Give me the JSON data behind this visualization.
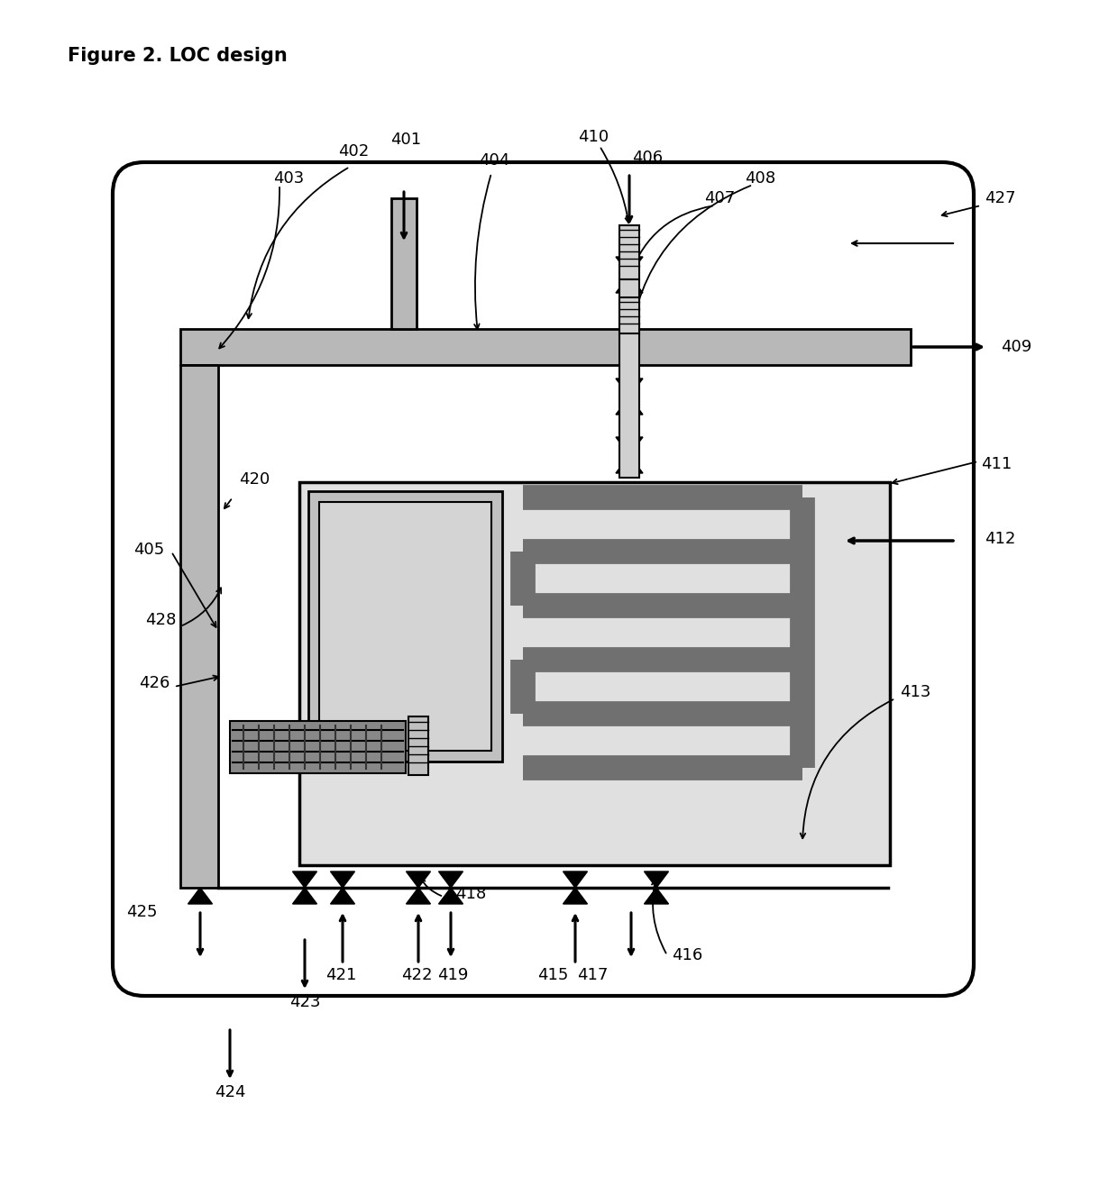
{
  "title": "Figure 2. LOC design",
  "bg_color": "#ffffff",
  "fig_width": 12.4,
  "fig_height": 13.06
}
